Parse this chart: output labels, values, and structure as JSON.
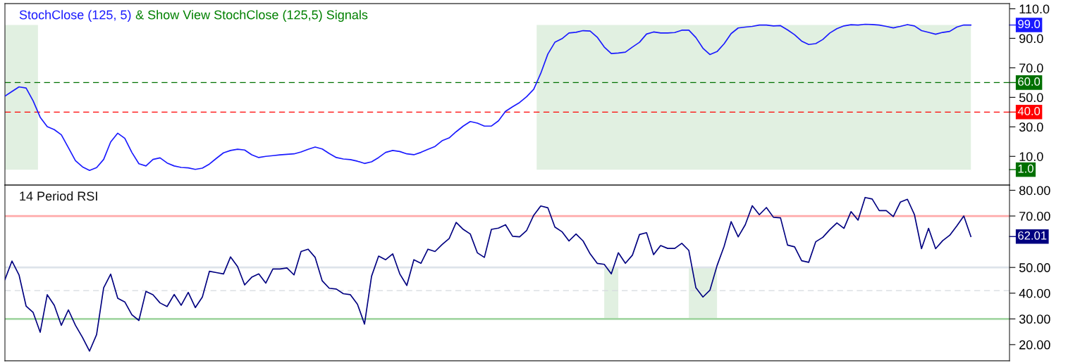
{
  "chart_data": [
    {
      "type": "line",
      "title": "StochClose (125, 5)",
      "subtitle": "& Show View StochClose (125,5) Signals",
      "categories": [
        null,
        null,
        null,
        null,
        null,
        null,
        null,
        null,
        null,
        null,
        null,
        null,
        null,
        null,
        null,
        null,
        null,
        null,
        null,
        null,
        null,
        null,
        null,
        null,
        null,
        null,
        null,
        null,
        null,
        null,
        null,
        null,
        null,
        null,
        null,
        null,
        null,
        null,
        null,
        null,
        null,
        null,
        null,
        null,
        null,
        null,
        null,
        null,
        null,
        null,
        null,
        null,
        null,
        null,
        null,
        null,
        null,
        null,
        null,
        null,
        null,
        null,
        null,
        null,
        null,
        null,
        null,
        null,
        null,
        null,
        null,
        null,
        null,
        null,
        null,
        null,
        null,
        null,
        null,
        null,
        null,
        null,
        null,
        null,
        null,
        null,
        null,
        null,
        null,
        null,
        null,
        null,
        null,
        null,
        null,
        null,
        null,
        null,
        null,
        null,
        null,
        null,
        null,
        null,
        null,
        null,
        null,
        null,
        null,
        null,
        null,
        null,
        null,
        null,
        null,
        null,
        null,
        null,
        null,
        null,
        null,
        null,
        null,
        null,
        null,
        null,
        null,
        null,
        null,
        null,
        null,
        null,
        null,
        null,
        null,
        null,
        null,
        null
      ],
      "series": [
        {
          "color": "#1a1aff",
          "values": [
            50.8,
            54,
            57.1,
            56.3,
            47.6,
            36.5,
            30.1,
            28.1,
            24.6,
            15.9,
            7.1,
            2.9,
            0.5,
            2.4,
            7.9,
            19.8,
            25.7,
            22.2,
            12.7,
            5,
            3.5,
            7.9,
            9,
            5.5,
            3.5,
            2.5,
            2.2,
            1.2,
            2,
            4.8,
            8.7,
            12.4,
            14,
            14.8,
            14.3,
            11.1,
            9.2,
            10,
            10.5,
            11,
            11.4,
            11.7,
            13,
            14.8,
            16.3,
            15,
            11.9,
            9.2,
            8.2,
            7.8,
            6.7,
            5.2,
            6.3,
            9.2,
            12.7,
            14,
            13.3,
            11.7,
            11.1,
            12.7,
            14.8,
            16.7,
            20.6,
            22.5,
            26.7,
            30.5,
            33.6,
            32.5,
            30.5,
            30.6,
            34.1,
            40.5,
            43.6,
            46.5,
            50.5,
            55.5,
            66.3,
            79.3,
            87.3,
            89.7,
            93.6,
            94.1,
            95.2,
            94.9,
            90.8,
            84.1,
            79.7,
            80,
            80.6,
            84.1,
            87.3,
            92.9,
            94.3,
            93.6,
            93.6,
            93.9,
            95.5,
            95.5,
            90.5,
            83.3,
            79,
            81,
            86.3,
            93.2,
            97,
            97.6,
            98.1,
            99,
            99,
            98.4,
            98.6,
            95.7,
            92.4,
            88.1,
            85.8,
            86.4,
            89.2,
            93.6,
            96.5,
            98.4,
            99.2,
            99,
            99.5,
            99.3,
            99,
            98.1,
            97.1,
            98.1,
            99.3,
            98.4,
            95.2,
            94,
            92.8,
            94,
            94.7,
            97.6,
            99,
            99
          ]
        }
      ],
      "ylim": [
        -9.5,
        113.5
      ],
      "yticks": [
        {
          "value": 110,
          "label": "110.0"
        },
        {
          "value": 90,
          "label": "90.0"
        },
        {
          "value": 70,
          "label": "70.0"
        },
        {
          "value": 50,
          "label": "50.0"
        },
        {
          "value": 30,
          "label": "30.0"
        },
        {
          "value": 10,
          "label": "10.0"
        }
      ],
      "ref_lines": [
        {
          "axis": "y",
          "value": 60,
          "label": "60.0",
          "color": "#007000",
          "line_style": "dashed"
        },
        {
          "axis": "y",
          "value": 40,
          "label": "40.0",
          "color": "#ff0000",
          "line_style": "dashed"
        }
      ],
      "annotations": [
        "99.0",
        "1.0"
      ],
      "tick_labels": "y",
      "grid": false
    },
    {
      "type": "line",
      "title": "14 Period RSI",
      "categories": [
        null,
        null,
        null,
        null,
        null,
        null,
        null,
        null,
        null,
        null,
        null,
        null,
        null,
        null,
        null,
        null,
        null,
        null,
        null,
        null,
        null,
        null,
        null,
        null,
        null,
        null,
        null,
        null,
        null,
        null,
        null,
        null,
        null,
        null,
        null,
        null,
        null,
        null,
        null,
        null,
        null,
        null,
        null,
        null,
        null,
        null,
        null,
        null,
        null,
        null,
        null,
        null,
        null,
        null,
        null,
        null,
        null,
        null,
        null,
        null,
        null,
        null,
        null,
        null,
        null,
        null,
        null,
        null,
        null,
        null,
        null,
        null,
        null,
        null,
        null,
        null,
        null,
        null,
        null,
        null,
        null,
        null,
        null,
        null,
        null,
        null,
        null,
        null,
        null,
        null,
        null,
        null,
        null,
        null,
        null,
        null,
        null,
        null,
        null,
        null,
        null,
        null,
        null,
        null,
        null,
        null,
        null,
        null,
        null,
        null,
        null,
        null,
        null,
        null,
        null,
        null,
        null,
        null,
        null,
        null,
        null,
        null,
        null,
        null,
        null,
        null,
        null,
        null,
        null,
        null,
        null,
        null,
        null,
        null,
        null,
        null,
        null,
        null
      ],
      "series": [
        {
          "color": "#000080",
          "values": [
            45.3,
            52.5,
            47.1,
            35,
            32.5,
            24.8,
            39.4,
            35.3,
            27.5,
            33.5,
            27.5,
            22.8,
            17.5,
            23.9,
            42.1,
            47.4,
            38,
            36.6,
            31.6,
            29.4,
            40.7,
            39.4,
            36.2,
            34.8,
            39.5,
            35.3,
            40.3,
            34.4,
            38.5,
            48.5,
            48,
            47.5,
            54.1,
            50.3,
            43.2,
            46.2,
            47.5,
            43.9,
            49.4,
            49.4,
            49.8,
            47.1,
            56.2,
            57.1,
            53.9,
            44.8,
            41.9,
            41.6,
            39.8,
            39.4,
            35.7,
            28,
            46.6,
            54.4,
            53,
            55.3,
            47.5,
            43,
            53,
            51.6,
            57.1,
            56.2,
            58.9,
            61.2,
            67.5,
            64.8,
            63,
            55.7,
            53.9,
            64.8,
            65.3,
            66.6,
            62.1,
            61.9,
            64.4,
            70.3,
            73.9,
            73.2,
            65.7,
            63.9,
            60.3,
            63,
            60.3,
            55.3,
            51.6,
            51.2,
            47.5,
            55.7,
            51.6,
            54.8,
            62.8,
            63.5,
            55,
            58.5,
            57.4,
            57.4,
            59.4,
            56.6,
            42.1,
            38.5,
            41.2,
            50.7,
            58.2,
            67.8,
            61.9,
            66.6,
            74,
            70.5,
            73.3,
            69.5,
            69.3,
            58.7,
            58,
            52.6,
            52,
            60,
            61.7,
            64.7,
            67.3,
            65.2,
            71.7,
            68.4,
            77.2,
            76.6,
            72.1,
            72.1,
            69.8,
            75.4,
            76.5,
            70.5,
            57.3,
            65.2,
            57.3,
            60.4,
            62.5,
            66.1,
            70,
            62.01
          ]
        }
      ],
      "ylim": [
        13.7,
        82
      ],
      "yticks": [
        {
          "value": 80,
          "label": "80.00"
        },
        {
          "value": 70,
          "label": "70.00"
        },
        {
          "value": 50,
          "label": "50.00"
        },
        {
          "value": 40,
          "label": "40.00"
        },
        {
          "value": 30,
          "label": "30.00"
        },
        {
          "value": 20,
          "label": "20.00"
        }
      ],
      "ref_lines": [
        {
          "axis": "y",
          "value": 70,
          "color": "#ffaaaa",
          "line_style": "solid"
        },
        {
          "axis": "y",
          "value": 50,
          "color": "#dde3ea",
          "line_style": "solid"
        },
        {
          "axis": "y",
          "value": 41,
          "color": "#d5d9de",
          "line_style": "dashed"
        },
        {
          "axis": "y",
          "value": 30,
          "color": "#a3d6a3",
          "line_style": "solid"
        }
      ],
      "annotations": [
        "62.01"
      ],
      "tick_labels": "y",
      "grid": false
    }
  ]
}
